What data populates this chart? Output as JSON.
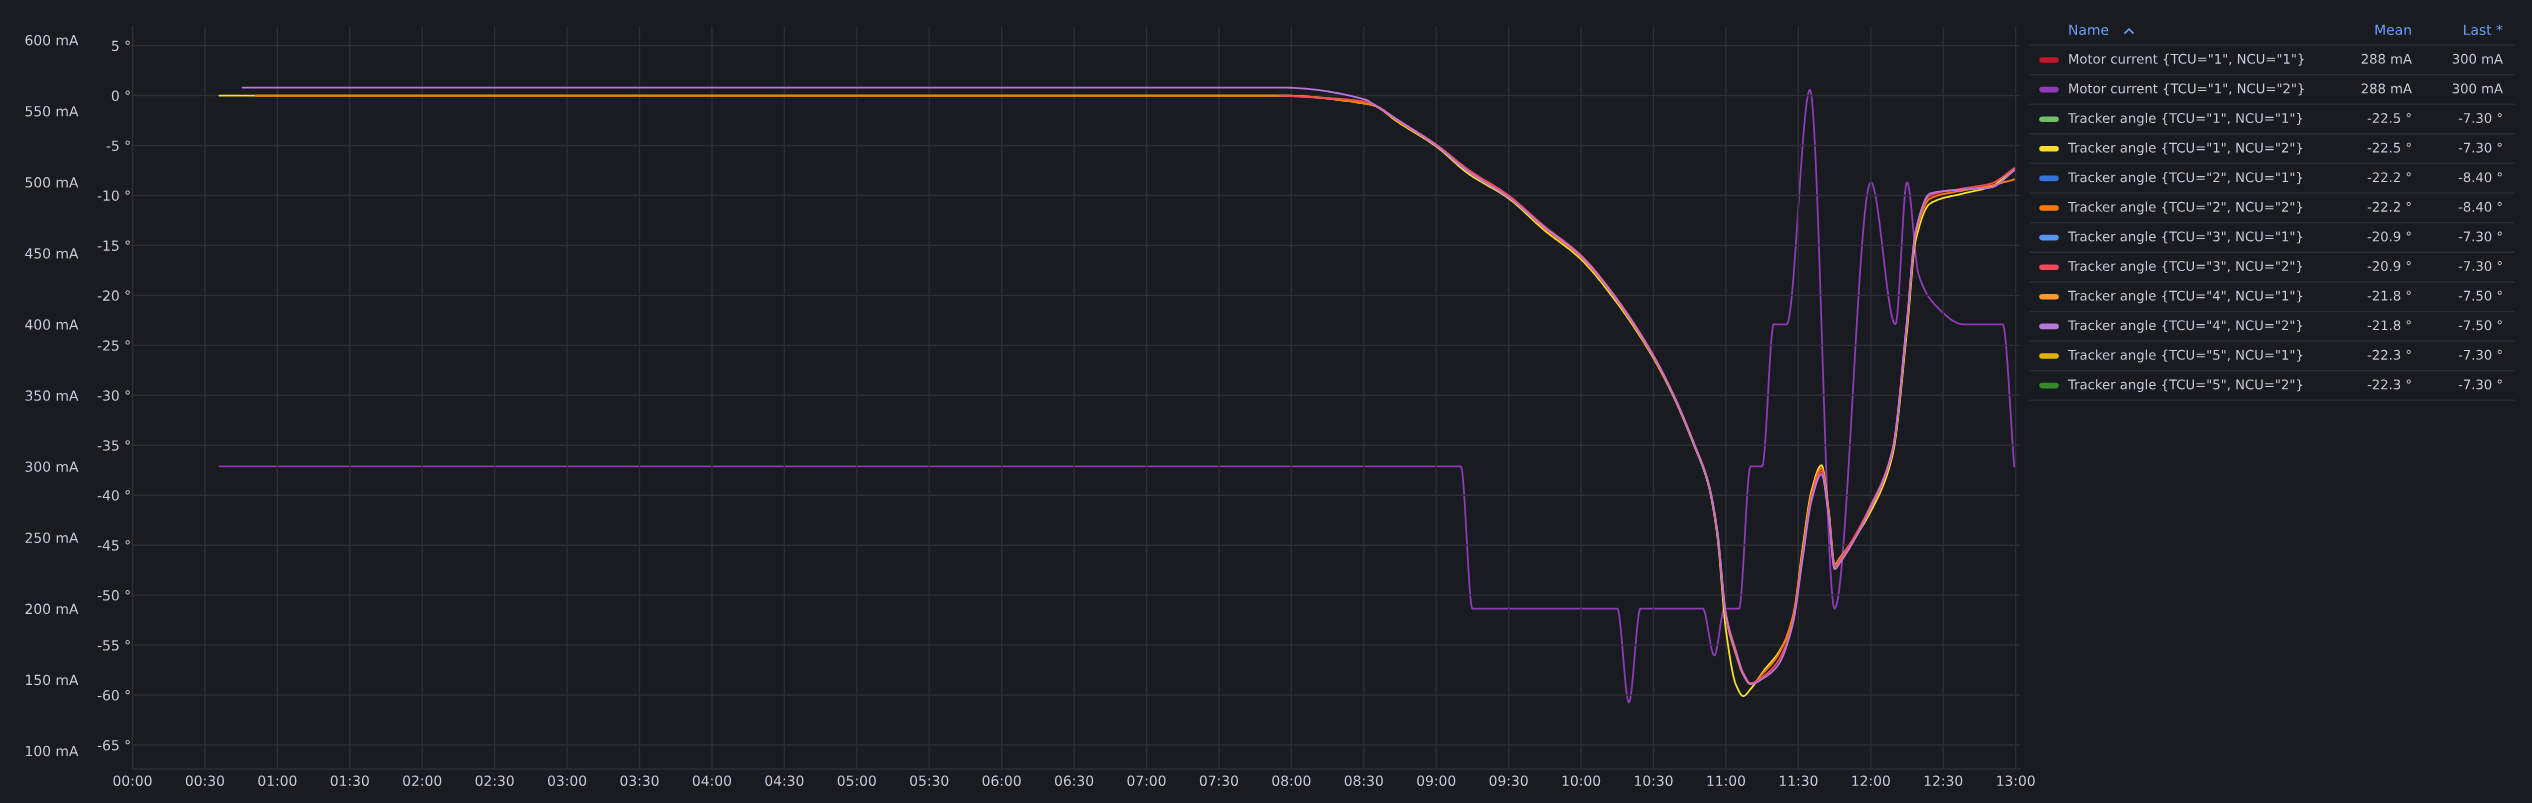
{
  "chart_data": {
    "type": "line",
    "x": [
      0.6,
      0.76,
      0.85,
      7.92,
      8.51,
      8.57,
      8.73,
      9.0,
      9.22,
      9.5,
      9.74,
      10.0,
      10.23,
      10.5,
      10.65,
      10.78,
      10.88,
      10.94,
      11.0,
      11.07,
      11.12,
      11.17,
      11.27,
      11.36,
      11.46,
      11.53,
      11.59,
      11.66,
      11.71,
      11.75,
      11.79,
      12.0,
      12.15,
      12.25,
      12.31,
      12.41,
      12.64,
      12.83,
      12.99
    ],
    "xlim": [
      0,
      13.03
    ],
    "xticks": [
      {
        "value": 0,
        "label": "00:00"
      },
      {
        "value": 0.5,
        "label": "00:30"
      },
      {
        "value": 1,
        "label": "01:00"
      },
      {
        "value": 1.5,
        "label": "01:30"
      },
      {
        "value": 2,
        "label": "02:00"
      },
      {
        "value": 2.5,
        "label": "02:30"
      },
      {
        "value": 3,
        "label": "03:00"
      },
      {
        "value": 3.5,
        "label": "03:30"
      },
      {
        "value": 4,
        "label": "04:00"
      },
      {
        "value": 4.5,
        "label": "04:30"
      },
      {
        "value": 5,
        "label": "05:00"
      },
      {
        "value": 5.5,
        "label": "05:30"
      },
      {
        "value": 6,
        "label": "06:00"
      },
      {
        "value": 6.5,
        "label": "06:30"
      },
      {
        "value": 7,
        "label": "07:00"
      },
      {
        "value": 7.5,
        "label": "07:30"
      },
      {
        "value": 8,
        "label": "08:00"
      },
      {
        "value": 8.5,
        "label": "08:30"
      },
      {
        "value": 9,
        "label": "09:00"
      },
      {
        "value": 9.5,
        "label": "09:30"
      },
      {
        "value": 10,
        "label": "10:00"
      },
      {
        "value": 10.5,
        "label": "10:30"
      },
      {
        "value": 11,
        "label": "11:00"
      },
      {
        "value": 11.5,
        "label": "11:30"
      },
      {
        "value": 12,
        "label": "12:00"
      },
      {
        "value": 12.5,
        "label": "12:30"
      },
      {
        "value": 13,
        "label": "13:00"
      }
    ],
    "ylim": [
      -67.4,
      6.9
    ],
    "yticks": [
      {
        "value": 5,
        "label": "5 °"
      },
      {
        "value": 0,
        "label": "0 °"
      },
      {
        "value": -5,
        "label": "-5 °"
      },
      {
        "value": -10,
        "label": "-10 °"
      },
      {
        "value": -15,
        "label": "-15 °"
      },
      {
        "value": -20,
        "label": "-20 °"
      },
      {
        "value": -25,
        "label": "-25 °"
      },
      {
        "value": -30,
        "label": "-30 °"
      },
      {
        "value": -35,
        "label": "-35 °"
      },
      {
        "value": -40,
        "label": "-40 °"
      },
      {
        "value": -45,
        "label": "-45 °"
      },
      {
        "value": -50,
        "label": "-50 °"
      },
      {
        "value": -55,
        "label": "-55 °"
      },
      {
        "value": -60,
        "label": "-60 °"
      },
      {
        "value": -65,
        "label": "-65 °"
      }
    ],
    "y2lim": [
      87.2,
      609.4
    ],
    "y2ticks": [
      {
        "value": 600,
        "label": "600 mA"
      },
      {
        "value": 550,
        "label": "550 mA"
      },
      {
        "value": 500,
        "label": "500 mA"
      },
      {
        "value": 450,
        "label": "450 mA"
      },
      {
        "value": 400,
        "label": "400 mA"
      },
      {
        "value": 350,
        "label": "350 mA"
      },
      {
        "value": 300,
        "label": "300 mA"
      },
      {
        "value": 250,
        "label": "250 mA"
      },
      {
        "value": 200,
        "label": "200 mA"
      },
      {
        "value": 150,
        "label": "150 mA"
      },
      {
        "value": 100,
        "label": "100 mA"
      }
    ],
    "grid": true,
    "legend": "right",
    "series": [
      {
        "name": "Motor current {TCU=\"1\", NCU=\"1\"}",
        "color": "#c4162a",
        "axis": "y2",
        "values": [
          null,
          null,
          null,
          null,
          null,
          null,
          null,
          null,
          null,
          null,
          null,
          null,
          null,
          null,
          null,
          null,
          null,
          null,
          null,
          null,
          null,
          null,
          null,
          null,
          null,
          null,
          null,
          null,
          null,
          null,
          null,
          null,
          null,
          null,
          null,
          null,
          null,
          null,
          null
        ]
      },
      {
        "name": "Motor current {TCU=\"1\", NCU=\"2\"}",
        "color": "#8f3bb8",
        "axis": "y2",
        "x": [
          0.6,
          9.17,
          9.25,
          10.25,
          10.33,
          10.41,
          10.84,
          10.92,
          10.99,
          11.09,
          11.17,
          11.25,
          11.33,
          11.42,
          11.58,
          11.75,
          12.0,
          12.17,
          12.25,
          12.33,
          12.45,
          12.64,
          12.91,
          12.99
        ],
        "values": [
          300,
          300,
          200,
          200,
          134,
          200,
          200,
          167,
          200,
          200,
          300,
          300,
          400,
          400,
          565,
          200,
          500,
          400,
          500,
          435,
          413,
          400,
          400,
          300
        ]
      },
      {
        "name": "Tracker angle {TCU=\"1\", NCU=\"1\"}",
        "color": "#73bf69",
        "values": [
          null,
          null,
          null,
          null,
          null,
          null,
          null,
          null,
          null,
          null,
          null,
          null,
          null,
          null,
          null,
          null,
          null,
          null,
          null,
          null,
          null,
          null,
          null,
          null,
          null,
          null,
          null,
          null,
          null,
          null,
          null,
          null,
          null,
          null,
          null,
          null,
          null,
          null,
          null
        ]
      },
      {
        "name": "Tracker angle {TCU=\"1\", NCU=\"2\"}",
        "color": "#fade2a",
        "values": [
          0,
          0,
          0,
          0,
          -0.8,
          -1.0,
          -2.6,
          -5.1,
          -7.8,
          -10.3,
          -13.4,
          -16.4,
          -20.4,
          -26.3,
          -30.5,
          -35.0,
          -39.0,
          -44.0,
          -53.5,
          -59.0,
          -60.1,
          -59.4,
          -57.4,
          -55.8,
          -52.6,
          -45.2,
          -39.6,
          -37.0,
          -41.6,
          -46.9,
          -46.2,
          -41.6,
          -36.0,
          -23.5,
          -14.5,
          -10.8,
          -9.8,
          -9.1,
          -7.3
        ]
      },
      {
        "name": "Tracker angle {TCU=\"2\", NCU=\"1\"}",
        "color": "#3274d9",
        "values": [
          null,
          null,
          null,
          null,
          null,
          null,
          null,
          null,
          null,
          null,
          null,
          null,
          null,
          null,
          null,
          null,
          null,
          null,
          null,
          null,
          null,
          null,
          null,
          null,
          null,
          null,
          null,
          null,
          null,
          null,
          null,
          null,
          null,
          null,
          null,
          null,
          null,
          null,
          null
        ]
      },
      {
        "name": "Tracker angle {TCU=\"2\", NCU=\"2\"}",
        "color": "#ff780a",
        "values": [
          null,
          null,
          0,
          0,
          -0.8,
          -1.0,
          -2.5,
          -5.0,
          -7.5,
          -10.1,
          -13.2,
          -16.2,
          -20.2,
          -26.2,
          -30.4,
          -34.9,
          -38.9,
          -43.7,
          -52.2,
          -56.0,
          -58.0,
          -58.9,
          -57.6,
          -56.0,
          -52.2,
          -45.6,
          -39.9,
          -37.3,
          -41.8,
          -47.2,
          -46.5,
          -41.3,
          -35.6,
          -22.8,
          -13.9,
          -10.3,
          -9.5,
          -9.0,
          -8.4
        ]
      },
      {
        "name": "Tracker angle {TCU=\"3\", NCU=\"1\"}",
        "color": "#5794f2",
        "values": [
          null,
          null,
          null,
          null,
          null,
          null,
          null,
          null,
          null,
          null,
          null,
          null,
          null,
          null,
          null,
          null,
          null,
          null,
          null,
          null,
          null,
          null,
          null,
          null,
          null,
          null,
          null,
          null,
          null,
          null,
          null,
          null,
          null,
          null,
          null,
          null,
          null,
          null,
          null
        ]
      },
      {
        "name": "Tracker angle {TCU=\"3\", NCU=\"2\"}",
        "color": "#f2495c",
        "values": [
          null,
          null,
          null,
          0,
          -0.6,
          -0.9,
          -2.4,
          -4.9,
          -7.4,
          -10.0,
          -13.0,
          -16.0,
          -20.0,
          -26.0,
          -30.3,
          -34.8,
          -38.8,
          -43.5,
          -51.8,
          -55.6,
          -57.8,
          -58.8,
          -58.0,
          -56.6,
          -52.8,
          -46.0,
          -40.3,
          -37.6,
          -42.0,
          -47.0,
          -46.3,
          -41.0,
          -35.4,
          -22.5,
          -13.5,
          -10.0,
          -9.3,
          -8.8,
          -7.3
        ]
      },
      {
        "name": "Tracker angle {TCU=\"4\", NCU=\"1\"}",
        "color": "#ff9830",
        "values": [
          null,
          null,
          null,
          null,
          null,
          null,
          null,
          null,
          null,
          null,
          null,
          null,
          null,
          null,
          null,
          null,
          null,
          null,
          null,
          null,
          null,
          null,
          null,
          null,
          null,
          null,
          null,
          null,
          null,
          null,
          null,
          null,
          null,
          null,
          null,
          null,
          null,
          null,
          null
        ]
      },
      {
        "name": "Tracker angle {TCU=\"4\", NCU=\"2\"}",
        "color": "#b877d9",
        "values": [
          null,
          0.8,
          0.8,
          0.8,
          -0.4,
          -0.9,
          -2.4,
          -5.0,
          -7.6,
          -10.2,
          -13.1,
          -16.1,
          -20.1,
          -26.1,
          -30.4,
          -34.9,
          -38.9,
          -43.6,
          -52.0,
          -55.8,
          -57.9,
          -58.9,
          -58.2,
          -57.0,
          -53.0,
          -46.3,
          -40.6,
          -37.9,
          -42.2,
          -47.4,
          -46.7,
          -41.2,
          -35.5,
          -22.6,
          -13.6,
          -9.8,
          -9.4,
          -9.2,
          -7.5
        ]
      },
      {
        "name": "Tracker angle {TCU=\"5\", NCU=\"1\"}",
        "color": "#e0b400",
        "values": [
          null,
          null,
          null,
          null,
          null,
          null,
          null,
          null,
          null,
          null,
          null,
          null,
          null,
          null,
          null,
          null,
          null,
          null,
          null,
          null,
          null,
          null,
          null,
          null,
          null,
          null,
          null,
          null,
          null,
          null,
          null,
          null,
          null,
          null,
          null,
          null,
          null,
          null,
          null
        ]
      },
      {
        "name": "Tracker angle {TCU=\"5\", NCU=\"2\"}",
        "color": "#37872d",
        "values": [
          null,
          null,
          null,
          null,
          null,
          null,
          null,
          null,
          null,
          null,
          null,
          null,
          null,
          null,
          null,
          null,
          null,
          null,
          null,
          null,
          null,
          null,
          null,
          null,
          null,
          null,
          null,
          null,
          null,
          null,
          null,
          null,
          null,
          null,
          null,
          null,
          null,
          null,
          null
        ]
      }
    ],
    "annotations": [
      "Name",
      "Mean",
      "Last *",
      "288 mA",
      "300 mA",
      "288 mA",
      "300 mA",
      "-22.5 °",
      "-7.30 °",
      "-22.5 °",
      "-7.30 °",
      "-22.2 °",
      "-8.40 °",
      "-22.2 °",
      "-8.40 °",
      "-20.9 °",
      "-7.30 °",
      "-20.9 °",
      "-7.30 °",
      "-21.8 °",
      "-7.50 °",
      "-21.8 °",
      "-7.50 °",
      "-22.3 °",
      "-7.30 °",
      "-22.3 °",
      "-7.30 °"
    ]
  }
}
